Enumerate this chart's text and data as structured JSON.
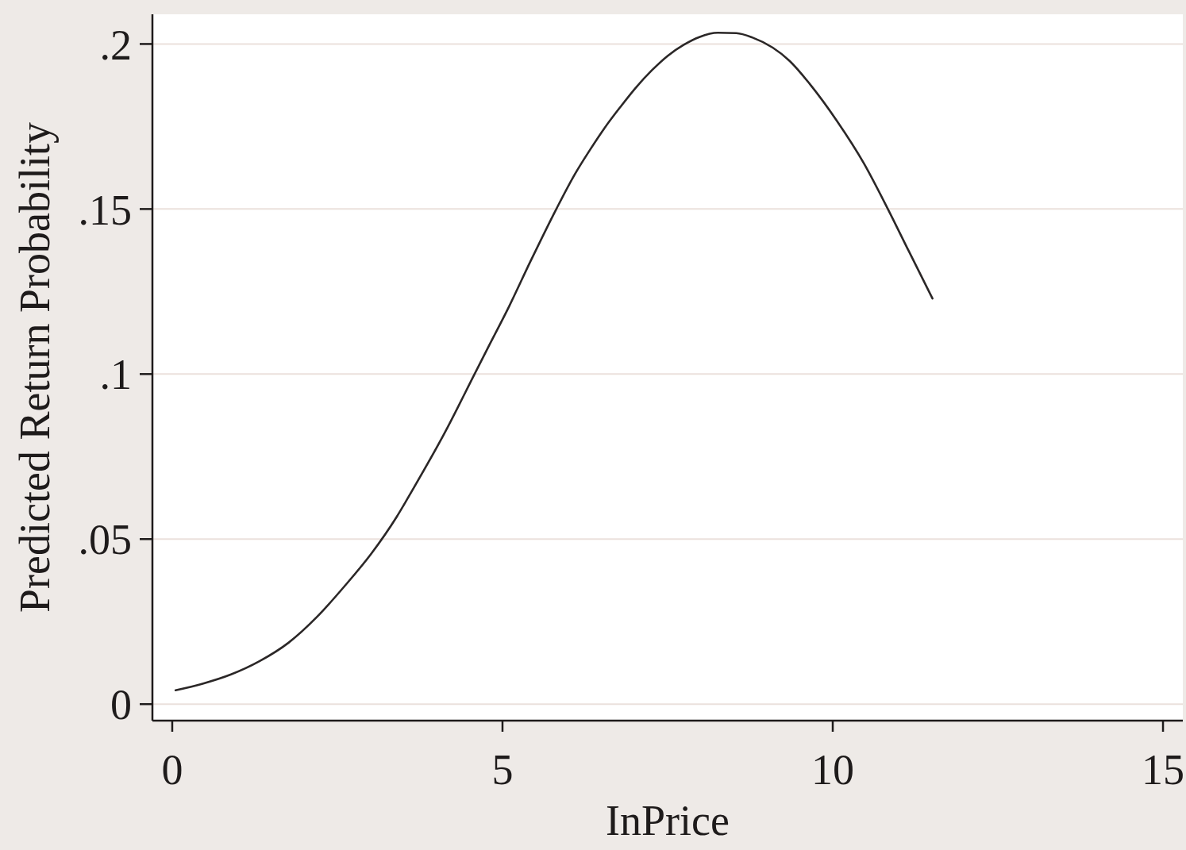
{
  "chart_data": {
    "type": "line",
    "xlabel": "InPrice",
    "ylabel": "Predicted Return Probability",
    "x": [
      0.05,
      0.46,
      0.89,
      1.32,
      1.76,
      2.19,
      2.62,
      3.01,
      3.4,
      3.65,
      4.12,
      4.58,
      4.78,
      5.1,
      5.42,
      5.82,
      6.1,
      6.33,
      6.54,
      6.78,
      7.02,
      7.26,
      7.5,
      7.74,
      7.98,
      8.26,
      8.54,
      8.78,
      9.35,
      9.66,
      10.06,
      10.47,
      10.83,
      11.15,
      11.51
    ],
    "values": [
      0.0042,
      0.0062,
      0.009,
      0.013,
      0.0186,
      0.0264,
      0.036,
      0.0455,
      0.0568,
      0.0653,
      0.082,
      0.1001,
      0.108,
      0.1205,
      0.134,
      0.1502,
      0.1607,
      0.1681,
      0.1744,
      0.1808,
      0.1868,
      0.192,
      0.1964,
      0.1997,
      0.2021,
      0.2034,
      0.2033,
      0.202,
      0.1948,
      0.1877,
      0.1768,
      0.1639,
      0.1502,
      0.1373,
      0.1229
    ],
    "color": "#2b2727",
    "xlim": [
      -0.3,
      15.3
    ],
    "xticks": [
      0,
      5,
      10,
      15
    ],
    "ylim": [
      -0.005,
      0.209
    ],
    "yticks": [
      0,
      {
        "value": 0.05,
        "label": ".05"
      },
      {
        "value": 0.1,
        "label": ".1"
      },
      {
        "value": 0.15,
        "label": ".15"
      },
      {
        "value": 0.2,
        "label": ".2"
      }
    ],
    "grid": "y",
    "marker": "none",
    "line_style": "solid"
  }
}
